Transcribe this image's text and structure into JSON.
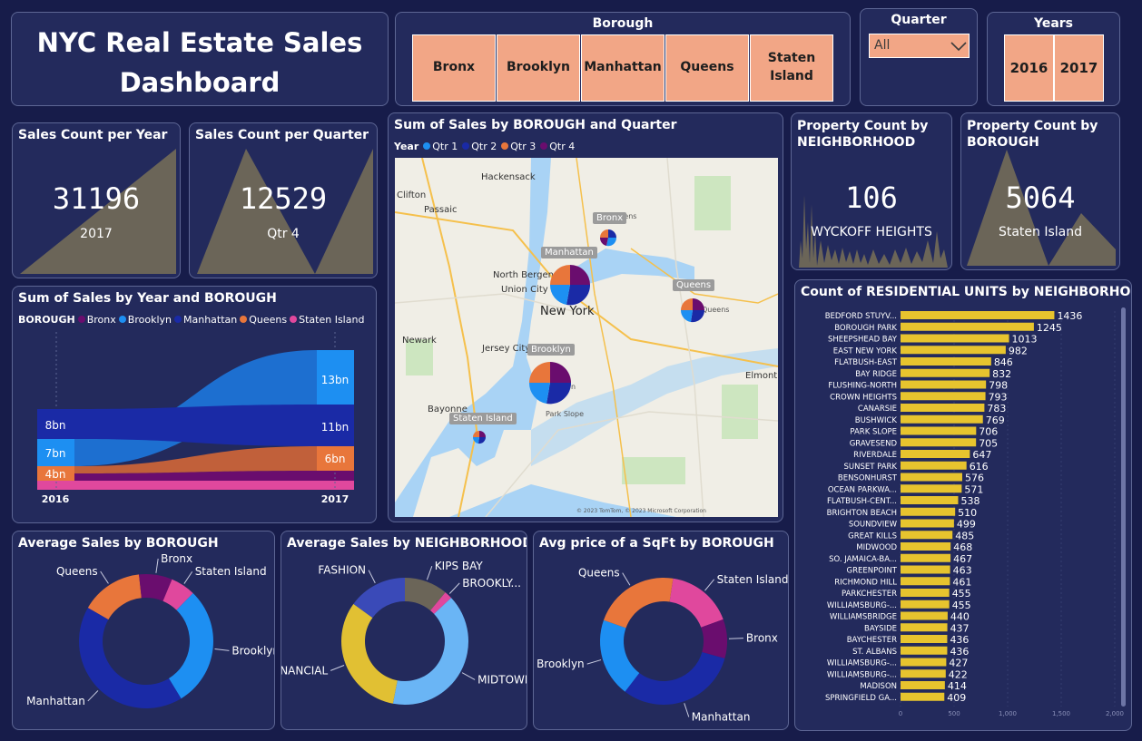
{
  "title": "NYC Real Estate Sales Dashboard",
  "borough_slicer": {
    "title": "Borough",
    "items": [
      "Bronx",
      "Brooklyn",
      "Manhattan",
      "Queens",
      "Staten Island"
    ]
  },
  "quarter_slicer": {
    "title": "Quarter",
    "value": "All"
  },
  "years_slicer": {
    "title": "Years",
    "items": [
      "2016",
      "2017"
    ]
  },
  "kpi_sales_year": {
    "title": "Sales Count per Year",
    "value": "31196",
    "label": "2017"
  },
  "kpi_sales_quarter": {
    "title": "Sales Count per Quarter",
    "value": "12529",
    "label": "Qtr 4"
  },
  "kpi_neighborhood": {
    "title": "Property Count by NEIGHBORHOOD",
    "value": "106",
    "label": "WYCKOFF HEIGHTS"
  },
  "kpi_borough": {
    "title": "Property Count by BOROUGH",
    "value": "5064",
    "label": "Staten Island"
  },
  "colors": {
    "bronx": "#6a0d6e",
    "brooklyn": "#1d8ff2",
    "manhattan": "#1a2aa6",
    "queens": "#e8763b",
    "staten_island": "#e0489d",
    "bar": "#e7c42e",
    "tile": "#f2a686",
    "card": "#232a5c",
    "background": "#171c4a"
  },
  "map": {
    "title": "Sum of Sales by BOROUGH and Quarter",
    "legend_title": "Year",
    "legend": [
      {
        "name": "Qtr 1",
        "color": "#1d8ff2"
      },
      {
        "name": "Qtr 2",
        "color": "#1a2aa6"
      },
      {
        "name": "Qtr 3",
        "color": "#e8763b"
      },
      {
        "name": "Qtr 4",
        "color": "#6a0d6e"
      }
    ],
    "callouts": [
      "Bronx",
      "Manhattan",
      "Queens",
      "Brooklyn",
      "Staten Island"
    ],
    "place_labels": [
      "Hackensack",
      "Clifton",
      "Passaic",
      "North Bergen",
      "Union City",
      "New York",
      "Newark",
      "Jersey City",
      "Bayonne",
      "Elmont",
      "Park Slope",
      "Queens",
      "Brooklyn",
      "Queens"
    ],
    "footer": "© 2023 TomTom, © 2023 Microsoft Corporation"
  },
  "chart_data": [
    {
      "type": "area",
      "title": "Sum of Sales by Year and BOROUGH",
      "legend_title": "BOROUGH",
      "categories": [
        "2016",
        "2017"
      ],
      "series": [
        {
          "name": "Bronx",
          "labels": [
            "",
            ""
          ]
        },
        {
          "name": "Brooklyn",
          "labels": [
            "7bn",
            "13bn"
          ]
        },
        {
          "name": "Manhattan",
          "labels": [
            "8bn",
            "11bn"
          ]
        },
        {
          "name": "Queens",
          "labels": [
            "4bn",
            "6bn"
          ]
        },
        {
          "name": "Staten Island",
          "labels": [
            "",
            ""
          ]
        }
      ]
    },
    {
      "type": "pie",
      "title": "Average Sales by BOROUGH",
      "labels": [
        "Queens",
        "Bronx",
        "Staten Island",
        "Brooklyn",
        "Manhattan"
      ],
      "values": [
        15,
        8,
        6,
        29,
        42
      ]
    },
    {
      "type": "pie",
      "title": "Average Sales by NEIGHBORHOOD",
      "labels": [
        "KIPS BAY",
        "BROOKLY...",
        "MIDTOWN CBD",
        "FINANCIAL",
        "FASHION"
      ],
      "values": [
        11,
        2,
        40,
        32,
        15
      ]
    },
    {
      "type": "pie",
      "title": "Avg price of a SqFt by BOROUGH",
      "labels": [
        "Staten Island",
        "Bronx",
        "Manhattan",
        "Brooklyn",
        "Queens"
      ],
      "values": [
        17,
        10,
        31,
        20,
        22
      ]
    },
    {
      "type": "bar",
      "title": "Count of RESIDENTIAL UNITS by NEIGHBORHOOD",
      "xlim": [
        0,
        2000
      ],
      "xticks": [
        "0",
        "500",
        "1,000",
        "1,500",
        "2,000"
      ],
      "categories": [
        "BEDFORD STUYV...",
        "BOROUGH PARK",
        "SHEEPSHEAD BAY",
        "EAST NEW YORK",
        "FLATBUSH-EAST",
        "BAY RIDGE",
        "FLUSHING-NORTH",
        "CROWN HEIGHTS",
        "CANARSIE",
        "BUSHWICK",
        "PARK SLOPE",
        "GRAVESEND",
        "RIVERDALE",
        "SUNSET PARK",
        "BENSONHURST",
        "OCEAN PARKWA...",
        "FLATBUSH-CENT...",
        "BRIGHTON BEACH",
        "SOUNDVIEW",
        "GREAT KILLS",
        "MIDWOOD",
        "SO. JAMAICA-BA...",
        "GREENPOINT",
        "RICHMOND HILL",
        "PARKCHESTER",
        "WILLIAMSBURG-...",
        "WILLIAMSBRIDGE",
        "BAYSIDE",
        "BAYCHESTER",
        "ST. ALBANS",
        "WILLIAMSBURG-...",
        "WILLIAMSBURG-...",
        "MADISON",
        "SPRINGFIELD GA..."
      ],
      "values": [
        1436,
        1245,
        1013,
        982,
        846,
        832,
        798,
        793,
        783,
        769,
        706,
        705,
        647,
        616,
        576,
        571,
        538,
        510,
        499,
        485,
        468,
        467,
        463,
        461,
        455,
        455,
        440,
        437,
        436,
        436,
        427,
        422,
        414,
        409
      ]
    }
  ]
}
